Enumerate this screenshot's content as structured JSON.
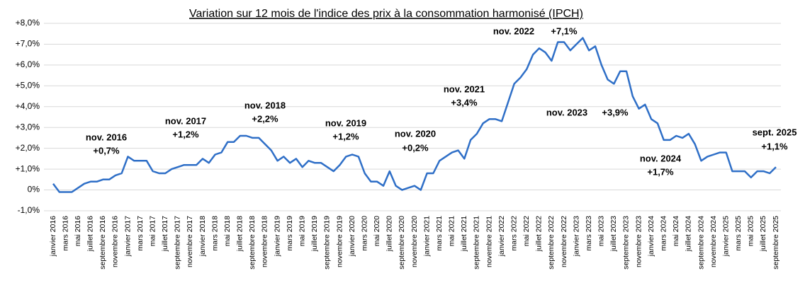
{
  "chart_data": {
    "type": "line",
    "title": "Variation sur 12 mois de l'indice des prix à la consommation harmonisé (IPCH)",
    "categories": [
      "janvier 2016",
      null,
      "mars 2016",
      null,
      "mai 2016",
      null,
      "juillet 2016",
      null,
      "septembre 2016",
      null,
      "novembre 2016",
      null,
      "janvier 2017",
      null,
      "mars 2017",
      null,
      "mai 2017",
      null,
      "juillet 2017",
      null,
      "septembre 2017",
      null,
      "novembre 2017",
      null,
      "janvier 2018",
      null,
      "mars 2018",
      null,
      "mai 2018",
      null,
      "juillet 2018",
      null,
      "septembre 2018",
      null,
      "novembre 2018",
      null,
      "janvier 2019",
      null,
      "mars 2019",
      null,
      "mai 2019",
      null,
      "juillet 2019",
      null,
      "septembre 2019",
      null,
      "novembre 2019",
      null,
      "janvier 2020",
      null,
      "mars 2020",
      null,
      "mai 2020",
      null,
      "juillet 2020",
      null,
      "septembre 2020",
      null,
      "novembre 2020",
      null,
      "janvier 2021",
      null,
      "mars 2021",
      null,
      "mai 2021",
      null,
      "juillet 2021",
      null,
      "septembre 2021",
      null,
      "novembre 2021",
      null,
      "janvier 2022",
      null,
      "mars 2022",
      null,
      "mai 2022",
      null,
      "juillet 2022",
      null,
      "septembre 2022",
      null,
      "novembre 2022",
      null,
      "janvier 2023",
      null,
      "mars 2023",
      null,
      "mai 2023",
      null,
      "juillet 2023",
      null,
      "septembre 2023",
      null,
      "novembre 2023",
      null,
      "janvier 2024",
      null,
      "mars 2024",
      null,
      "mai 2024",
      null,
      "juillet 2024",
      null,
      "septembre 2024",
      null,
      "novembre 2024",
      null,
      "janvier 2025",
      null,
      "mars 2025",
      null,
      "mai 2025",
      null,
      "juillet 2025",
      null,
      "septembre 2025"
    ],
    "series": [
      {
        "color": "#2f6fc7",
        "values": [
          0.3,
          -0.1,
          -0.1,
          -0.1,
          0.1,
          0.3,
          0.4,
          0.4,
          0.5,
          0.5,
          0.7,
          0.8,
          1.6,
          1.4,
          1.4,
          1.4,
          0.9,
          0.8,
          0.8,
          1.0,
          1.1,
          1.2,
          1.2,
          1.2,
          1.5,
          1.3,
          1.7,
          1.8,
          2.3,
          2.3,
          2.6,
          2.6,
          2.5,
          2.5,
          2.2,
          1.9,
          1.4,
          1.6,
          1.3,
          1.5,
          1.1,
          1.4,
          1.3,
          1.3,
          1.1,
          0.9,
          1.2,
          1.6,
          1.7,
          1.6,
          0.8,
          0.4,
          0.4,
          0.2,
          0.9,
          0.2,
          0.0,
          0.1,
          0.2,
          0.0,
          0.8,
          0.8,
          1.4,
          1.6,
          1.8,
          1.9,
          1.5,
          2.4,
          2.7,
          3.2,
          3.4,
          3.4,
          3.3,
          4.2,
          5.1,
          5.4,
          5.8,
          6.5,
          6.8,
          6.6,
          6.2,
          7.1,
          7.1,
          6.7,
          7.0,
          7.3,
          6.7,
          6.9,
          6.0,
          5.3,
          5.1,
          5.7,
          5.7,
          4.5,
          3.9,
          4.1,
          3.4,
          3.2,
          2.4,
          2.4,
          2.6,
          2.5,
          2.7,
          2.2,
          1.4,
          1.6,
          1.7,
          1.8,
          1.8,
          0.9,
          0.9,
          0.9,
          0.6,
          0.9,
          0.9,
          0.8,
          1.1
        ]
      }
    ],
    "ylim": [
      -1,
      8
    ],
    "yticks": [
      {
        "value": 8,
        "label": "+8,0%"
      },
      {
        "value": 7,
        "label": "+7,0%"
      },
      {
        "value": 6,
        "label": "+6,0%"
      },
      {
        "value": 5,
        "label": "+5,0%"
      },
      {
        "value": 4,
        "label": "+4,0%"
      },
      {
        "value": 3,
        "label": "+3,0%"
      },
      {
        "value": 2,
        "label": "+2,0%"
      },
      {
        "value": 1,
        "label": "+1,0%"
      },
      {
        "value": 0,
        "label": "0%"
      },
      {
        "value": -1,
        "label": "-1,0%"
      }
    ],
    "grid": true,
    "annotations": [
      {
        "text": "nov. 2016",
        "value_label": "+0,7%"
      },
      {
        "text": "nov. 2017",
        "value_label": "+1,2%"
      },
      {
        "text": "nov. 2018",
        "value_label": "+2,2%"
      },
      {
        "text": "nov. 2019",
        "value_label": "+1,2%"
      },
      {
        "text": "nov. 2020",
        "value_label": "+0,2%"
      },
      {
        "text": "nov. 2021",
        "value_label": "+3,4%"
      },
      {
        "text": "nov. 2022",
        "value_label": "+7,1%"
      },
      {
        "text": "nov. 2023",
        "value_label": "+3,9%"
      },
      {
        "text": "nov. 2024",
        "value_label": "+1,7%"
      },
      {
        "text": "sept. 2025",
        "value_label": "+1,1%"
      }
    ]
  }
}
